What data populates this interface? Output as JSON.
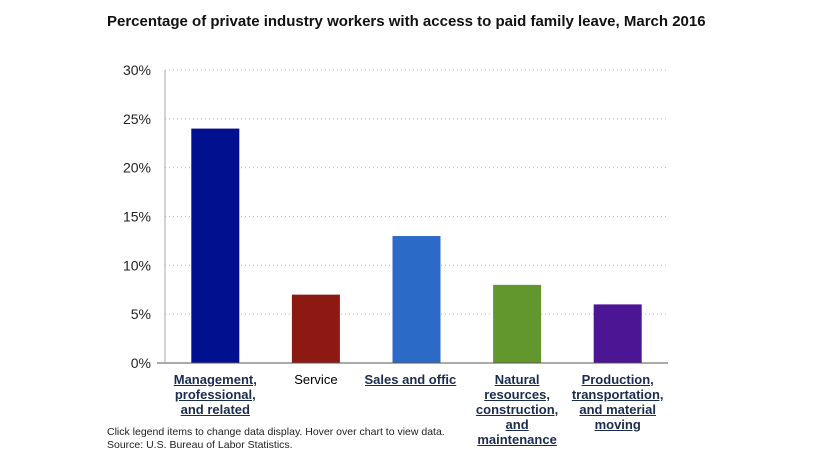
{
  "chart_data": {
    "type": "bar",
    "title": "Percentage of private industry workers with access to paid family leave, March 2016",
    "categories": [
      "Management, professional, and related",
      "Service",
      "Sales and office",
      "Natural resources, construction, and maintenance",
      "Production, transportation, and material moving"
    ],
    "category_display": [
      "Management,\nprofessional,\nand related",
      "Service",
      "Sales and offic",
      "Natural\nresources,\nconstruction,\nand\nmaintenance",
      "Production,\ntransportation,\nand material\nmoving"
    ],
    "category_is_link": [
      true,
      false,
      true,
      true,
      true
    ],
    "values": [
      24,
      7,
      13,
      8,
      6
    ],
    "bar_colors": [
      "#00108f",
      "#8d1a12",
      "#2c6ac8",
      "#62972d",
      "#4b1594"
    ],
    "ylim": [
      0,
      30
    ],
    "yticks": [
      0,
      5,
      10,
      15,
      20,
      25,
      30
    ],
    "ytick_labels": [
      "0%",
      "5%",
      "10%",
      "15%",
      "20%",
      "25%",
      "30%"
    ],
    "xlabel": "",
    "ylabel": "",
    "grid": true
  },
  "footnotes": {
    "instructions": "Click legend items to change data display. Hover over chart to view data.",
    "source": "Source: U.S. Bureau of Labor Statistics."
  }
}
